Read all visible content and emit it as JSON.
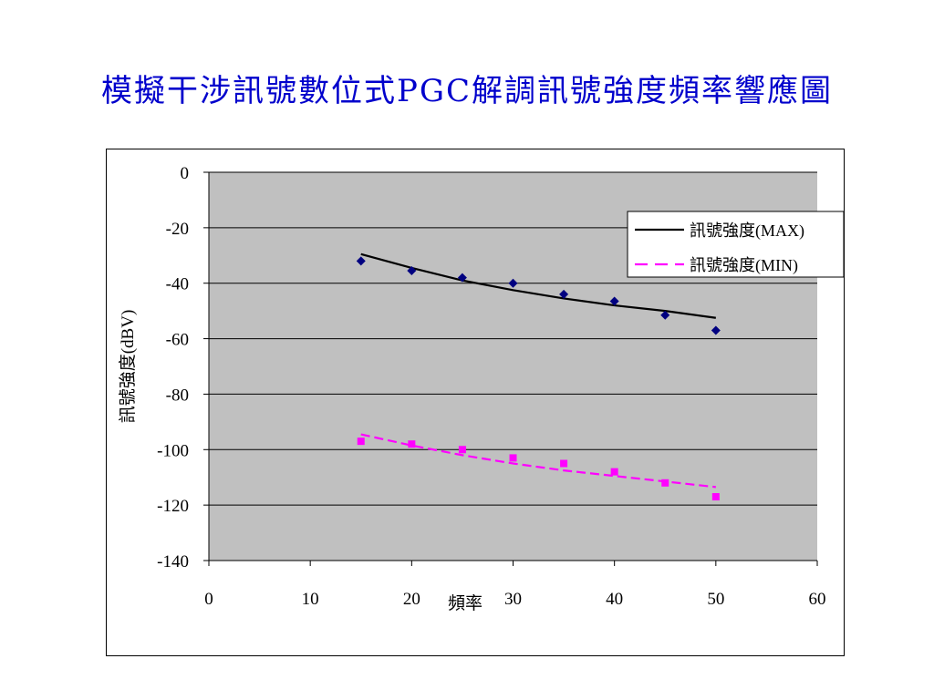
{
  "page": {
    "title": "模擬干涉訊號數位式PGC解調訊號強度頻率響應圖"
  },
  "chart_data": {
    "type": "scatter",
    "title": "",
    "xlabel": "頻率",
    "ylabel": "訊號強度(dBV)",
    "xlim": [
      0,
      60
    ],
    "ylim": [
      -140,
      0
    ],
    "x_ticks": [
      0,
      10,
      20,
      30,
      40,
      50,
      60
    ],
    "y_ticks": [
      0,
      -20,
      -40,
      -60,
      -80,
      -100,
      -120,
      -140
    ],
    "grid": "horizontal",
    "legend_position": "top-right",
    "series": [
      {
        "name": "訊號強度(MAX)",
        "color": "#000080",
        "trend_color": "#000000",
        "marker": "diamond",
        "x": [
          15,
          20,
          25,
          30,
          35,
          40,
          45,
          50
        ],
        "values": [
          -32,
          -35.5,
          -38,
          -40,
          -44,
          -46.5,
          -51.5,
          -57
        ],
        "trend": {
          "x": [
            15,
            20,
            25,
            30,
            35,
            40,
            45,
            50
          ],
          "values": [
            -29.5,
            -34.5,
            -39,
            -42.5,
            -45.5,
            -48,
            -50,
            -52.5
          ]
        }
      },
      {
        "name": "訊號強度(MIN)",
        "color": "#ff00ff",
        "trend_color": "#ff00ff",
        "marker": "square",
        "x": [
          15,
          20,
          25,
          30,
          35,
          40,
          45,
          50
        ],
        "values": [
          -97,
          -98,
          -100,
          -103,
          -105,
          -108,
          -112,
          -117
        ],
        "trend": {
          "x": [
            15,
            20,
            25,
            30,
            35,
            40,
            45,
            50
          ],
          "values": [
            -94.5,
            -98.5,
            -102,
            -105,
            -107.5,
            -109.5,
            -111.5,
            -113.5
          ]
        }
      }
    ]
  }
}
